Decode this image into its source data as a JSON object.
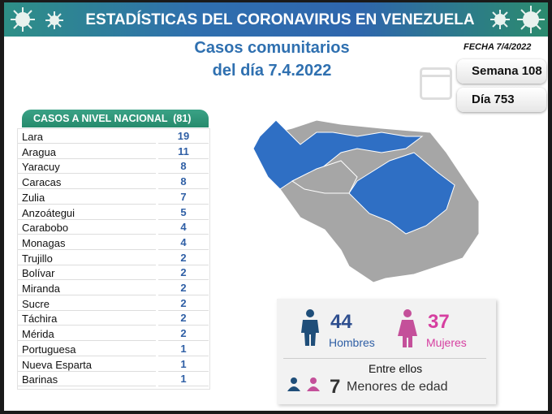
{
  "header": {
    "title": "ESTADÍSTICAS DEL CORONAVIRUS EN VENEZUELA"
  },
  "subtitle": {
    "line1": "Casos comunitarios",
    "line2": "del día 7.4.2022"
  },
  "fecha": "FECHA 7/4/2022",
  "semana": "Semana 108",
  "dia": "Día 753",
  "table": {
    "title": "CASOS A NIVEL NACIONAL  (81)",
    "rows": [
      [
        "Lara",
        "19"
      ],
      [
        "Aragua",
        "11"
      ],
      [
        "Yaracuy",
        "8"
      ],
      [
        "Caracas",
        "8"
      ],
      [
        "Zulia",
        "7"
      ],
      [
        "Anzoátegui",
        "5"
      ],
      [
        "Carabobo",
        "4"
      ],
      [
        "Monagas",
        "4"
      ],
      [
        "Trujillo",
        "2"
      ],
      [
        "Bolívar",
        "2"
      ],
      [
        "Miranda",
        "2"
      ],
      [
        "Sucre",
        "2"
      ],
      [
        "Táchira",
        "2"
      ],
      [
        "Mérida",
        "2"
      ],
      [
        "Portuguesa",
        "1"
      ],
      [
        "Nueva Esparta",
        "1"
      ],
      [
        "Barinas",
        "1"
      ]
    ]
  },
  "gender": {
    "men_count": "44",
    "men_label": "Hombres",
    "women_count": "37",
    "women_label": "Mujeres",
    "between": "Entre ellos",
    "minors_count": "7",
    "minors_label": "Menores de edad"
  },
  "colors": {
    "men": "#1f4e79",
    "women": "#c4509a",
    "map_blue": "#2f6fc4",
    "map_gray": "#a6a6a6"
  }
}
